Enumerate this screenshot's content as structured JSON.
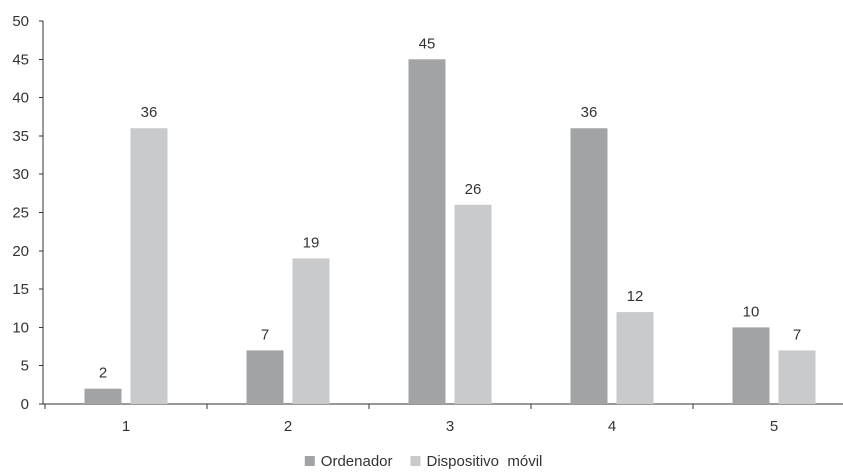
{
  "chart_data": {
    "type": "bar",
    "title": "",
    "xlabel": "",
    "ylabel": "",
    "categories": [
      "1",
      "2",
      "3",
      "4",
      "5"
    ],
    "series": [
      {
        "name": "Ordenador",
        "values": [
          2,
          7,
          45,
          36,
          10
        ],
        "color": "#a2a3a5"
      },
      {
        "name": "Dispositivo  móvil",
        "values": [
          36,
          19,
          26,
          12,
          7
        ],
        "color": "#c9cacb"
      }
    ],
    "ylim": [
      0,
      50
    ],
    "yticks": [
      0,
      5,
      10,
      15,
      20,
      25,
      30,
      35,
      40,
      45,
      50
    ],
    "grid": false,
    "legend": "bottom-center",
    "data_labels": true
  }
}
